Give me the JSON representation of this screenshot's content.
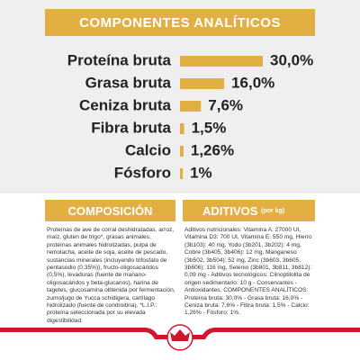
{
  "chart_data": {
    "type": "bar",
    "title": "COMPONENTES ANALÍTICOS",
    "categories": [
      "Proteína bruta",
      "Grasa bruta",
      "Ceniza bruta",
      "Fibra bruta",
      "Calcio",
      "Fósforo"
    ],
    "values": [
      30.0,
      16.0,
      7.6,
      1.5,
      1.26,
      1
    ],
    "value_labels": [
      "30,0%",
      "16,0%",
      "7,6%",
      "1,5%",
      "1,26%",
      "1%"
    ],
    "color": "#e2b042"
  },
  "composition": {
    "title": "COMPOSICIÓN",
    "text": "Proteínas de ave de corral deshidratadas, arroz, maíz, gluten de trigo*, grasas animales, proteínas animales hidrolizadas, pulpa de remolacha, aceite de soja, aceite de pescado, sustancias minerales (incluyendo trifosfato de pentasodio (0,35%)), fructo-oligosacáridos (0,5%), levaduras (fuente de manano-oligosacáridos y beta-glucanos), harina de tagetes, glucosamina obtenida por fermentación, zumo/jugo de Yucca schidigera, cartílago hidrolizado (fuente de condroitina). *L.I.P.: proteína seleccionada por su elevada digestibilidad."
  },
  "additives": {
    "title": "ADITIVOS",
    "unit": "(por kg)",
    "text": "Aditivos nutricionales: Vitamina A: 27000 UI, Vitamina D3: 700 UI, Vitamina E: 550 mg, Hierro (3b103): 40 mg, Yodo (3b201, 3b202): 4 mg, Cobre (3b405, 3b406): 12 mg, Manganeso (3b502, 3b504): 52 mg, Zinc (3b603, 3b605, 3b606): 116 mg, Selenio (3b801, 3b811, 3b812): 0,09 mg - Aditivos tecnológicos: Clinoptilolita de origen sedimentario: 10 g - Conservantes - Antioxidantes. COMPONENTES ANALÍTICOS: Proteína bruta: 30,0% - Grasa bruta: 16,0% - Ceniza bruta: 7,6% - Fibra bruta: 1,5% - Calcio: 1,26% - Fósforo: 1%."
  }
}
